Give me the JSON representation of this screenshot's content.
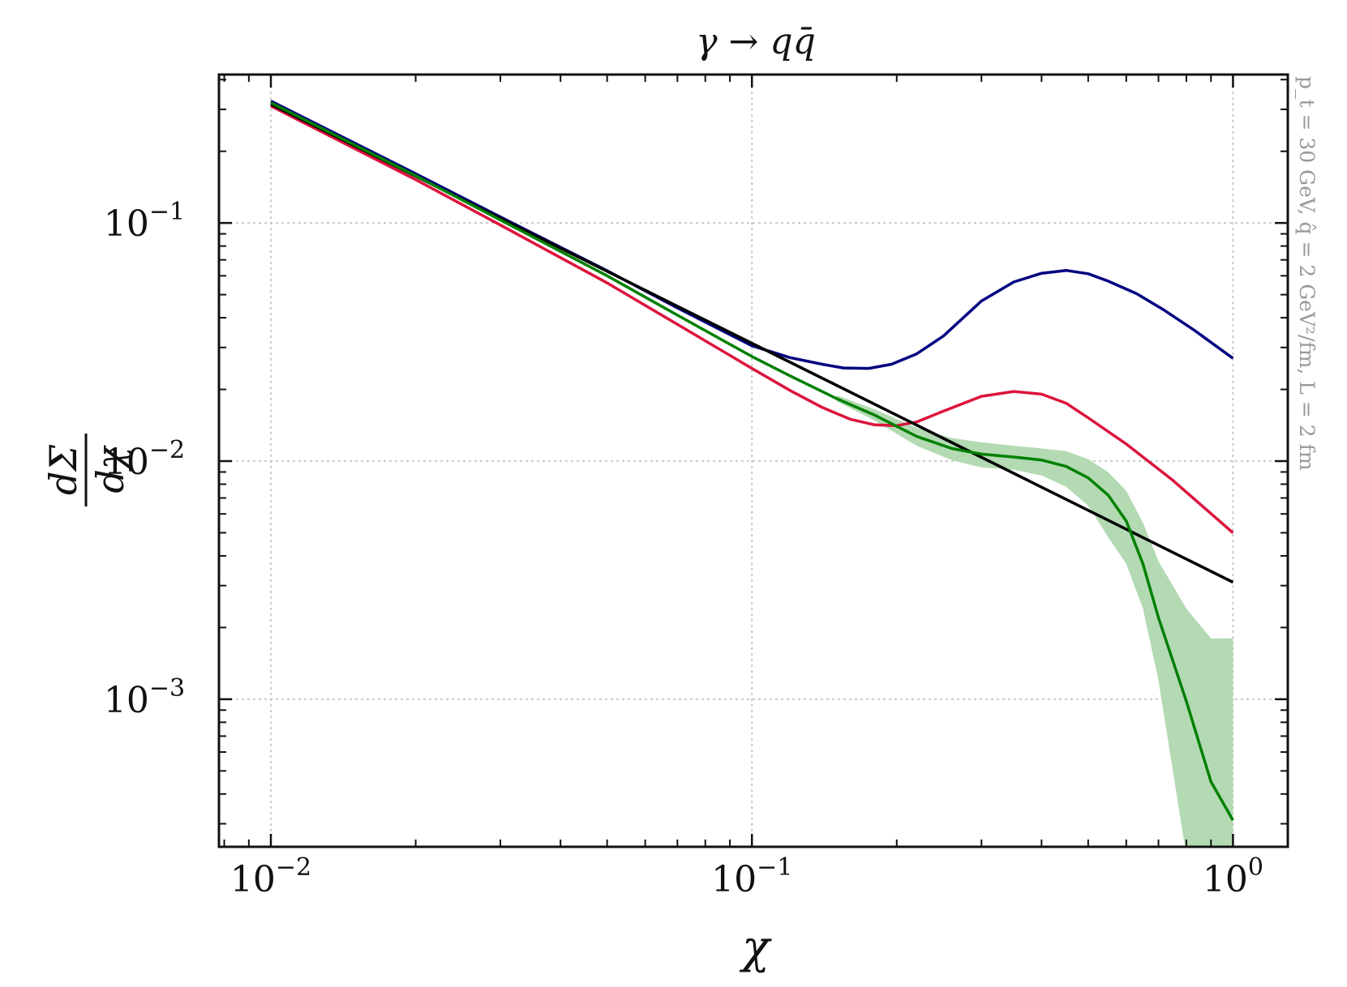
{
  "chart_data": {
    "type": "line",
    "title": "γ → qq̄",
    "xlabel": "χ",
    "ylabel": {
      "numerator": "dΣ",
      "denominator": "dχ"
    },
    "xscale": "log",
    "yscale": "log",
    "xlim": [
      0.0078,
      1.3
    ],
    "ylim": [
      0.00024,
      0.42
    ],
    "grid": true,
    "annotation": "p_t = 30 GeV, q̂ = 2 GeV²/fm, L = 2 fm",
    "x_ticks": [
      {
        "value": 0.01,
        "label": "10",
        "exp": "−2"
      },
      {
        "value": 0.1,
        "label": "10",
        "exp": "−1"
      },
      {
        "value": 1,
        "label": "10",
        "exp": "0"
      }
    ],
    "y_ticks": [
      {
        "value": 0.1,
        "label": "10",
        "exp": "−1"
      },
      {
        "value": 0.01,
        "label": "10",
        "exp": "−2"
      },
      {
        "value": 0.001,
        "label": "10",
        "exp": "−3"
      }
    ],
    "series": [
      {
        "color": "#000080",
        "x": [
          0.01,
          0.02,
          0.03,
          0.05,
          0.07,
          0.1,
          0.12,
          0.14,
          0.155,
          0.175,
          0.195,
          0.22,
          0.25,
          0.3,
          0.35,
          0.4,
          0.45,
          0.5,
          0.55,
          0.63,
          0.72,
          0.83,
          1.0
        ],
        "y": [
          0.325,
          0.161,
          0.106,
          0.063,
          0.044,
          0.0305,
          0.0272,
          0.0255,
          0.0246,
          0.0245,
          0.0255,
          0.0282,
          0.0335,
          0.047,
          0.0565,
          0.0615,
          0.0632,
          0.0612,
          0.057,
          0.0505,
          0.043,
          0.0355,
          0.027
        ]
      },
      {
        "color": "#dc143c",
        "x": [
          0.01,
          0.02,
          0.03,
          0.05,
          0.07,
          0.1,
          0.12,
          0.14,
          0.16,
          0.18,
          0.2,
          0.22,
          0.25,
          0.3,
          0.35,
          0.4,
          0.45,
          0.5,
          0.6,
          0.75,
          1.0
        ],
        "y": [
          0.31,
          0.152,
          0.098,
          0.056,
          0.0375,
          0.0245,
          0.0198,
          0.0168,
          0.015,
          0.0142,
          0.0141,
          0.0146,
          0.0162,
          0.0187,
          0.0196,
          0.0191,
          0.0175,
          0.0152,
          0.0118,
          0.0083,
          0.005
        ]
      },
      {
        "color": "#000000",
        "x": [
          0.01,
          1.0
        ],
        "y": [
          0.315,
          0.0031
        ]
      },
      {
        "color": "#008000",
        "x": [
          0.01,
          0.02,
          0.03,
          0.05,
          0.07,
          0.1,
          0.12,
          0.15,
          0.18,
          0.22,
          0.26,
          0.3,
          0.35,
          0.4,
          0.45,
          0.5,
          0.55,
          0.6,
          0.65,
          0.7,
          0.8,
          0.9,
          1.0
        ],
        "y": [
          0.32,
          0.158,
          0.103,
          0.06,
          0.041,
          0.0275,
          0.0228,
          0.0183,
          0.0156,
          0.0127,
          0.0113,
          0.0107,
          0.0104,
          0.0101,
          0.0095,
          0.0085,
          0.0072,
          0.0056,
          0.0037,
          0.0022,
          0.00098,
          0.00045,
          0.00031
        ]
      }
    ],
    "band": {
      "color": "#b3dab3",
      "x": [
        0.15,
        0.18,
        0.22,
        0.26,
        0.3,
        0.35,
        0.4,
        0.45,
        0.5,
        0.55,
        0.6,
        0.65,
        0.7,
        0.8,
        0.9,
        1.0
      ],
      "y_low": [
        0.0178,
        0.0148,
        0.0116,
        0.0101,
        0.0094,
        0.0092,
        0.0087,
        0.0078,
        0.0065,
        0.0048,
        0.0037,
        0.0024,
        0.0012,
        0.00022,
        0.00022,
        0.00022
      ],
      "y_high": [
        0.0189,
        0.0165,
        0.0138,
        0.0125,
        0.012,
        0.0116,
        0.0113,
        0.011,
        0.0102,
        0.009,
        0.0075,
        0.0055,
        0.0038,
        0.0024,
        0.0018,
        0.0018
      ]
    }
  }
}
